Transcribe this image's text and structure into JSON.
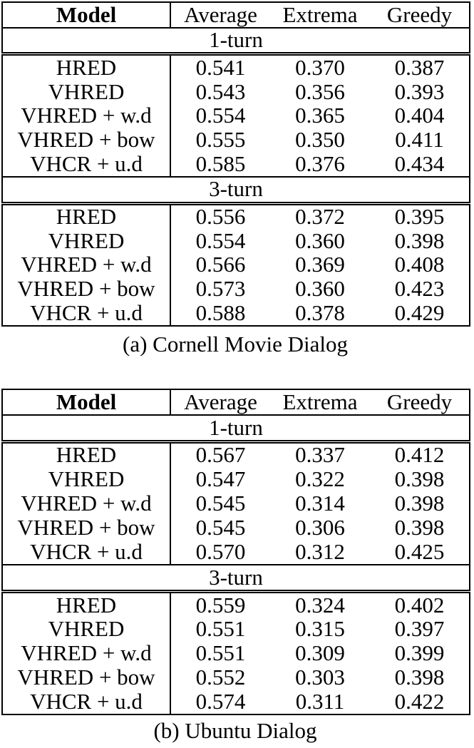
{
  "page": {
    "background_color": "#ffffff",
    "text_color": "#000000",
    "rule_color": "#000000"
  },
  "tables": [
    {
      "id": "cornell",
      "caption": "(a) Cornell Movie Dialog",
      "columns": [
        "Model",
        "Average",
        "Extrema",
        "Greedy"
      ],
      "sections": [
        {
          "label": "1-turn",
          "rows": [
            {
              "model": "HRED",
              "values": [
                "0.541",
                "0.370",
                "0.387"
              ],
              "bold": [
                false,
                false,
                false
              ]
            },
            {
              "model": "VHRED",
              "values": [
                "0.543",
                "0.356",
                "0.393"
              ],
              "bold": [
                false,
                false,
                false
              ]
            },
            {
              "model": "VHRED + w.d",
              "values": [
                "0.554",
                "0.365",
                "0.404"
              ],
              "bold": [
                false,
                false,
                false
              ]
            },
            {
              "model": "VHRED + bow",
              "values": [
                "0.555",
                "0.350",
                "0.411"
              ],
              "bold": [
                false,
                false,
                false
              ]
            },
            {
              "model": "VHCR + u.d",
              "values": [
                "0.585",
                "0.376",
                "0.434"
              ],
              "bold": [
                true,
                true,
                true
              ]
            }
          ]
        },
        {
          "label": "3-turn",
          "rows": [
            {
              "model": "HRED",
              "values": [
                "0.556",
                "0.372",
                "0.395"
              ],
              "bold": [
                false,
                false,
                false
              ]
            },
            {
              "model": "VHRED",
              "values": [
                "0.554",
                "0.360",
                "0.398"
              ],
              "bold": [
                false,
                false,
                false
              ]
            },
            {
              "model": "VHRED + w.d",
              "values": [
                "0.566",
                "0.369",
                "0.408"
              ],
              "bold": [
                false,
                false,
                false
              ]
            },
            {
              "model": "VHRED + bow",
              "values": [
                "0.573",
                "0.360",
                "0.423"
              ],
              "bold": [
                false,
                false,
                false
              ]
            },
            {
              "model": "VHCR + u.d",
              "values": [
                "0.588",
                "0.378",
                "0.429"
              ],
              "bold": [
                true,
                true,
                true
              ]
            }
          ]
        }
      ]
    },
    {
      "id": "ubuntu",
      "caption": "(b) Ubuntu Dialog",
      "columns": [
        "Model",
        "Average",
        "Extrema",
        "Greedy"
      ],
      "sections": [
        {
          "label": "1-turn",
          "rows": [
            {
              "model": "HRED",
              "values": [
                "0.567",
                "0.337",
                "0.412"
              ],
              "bold": [
                false,
                true,
                false
              ]
            },
            {
              "model": "VHRED",
              "values": [
                "0.547",
                "0.322",
                "0.398"
              ],
              "bold": [
                false,
                false,
                false
              ]
            },
            {
              "model": "VHRED + w.d",
              "values": [
                "0.545",
                "0.314",
                "0.398"
              ],
              "bold": [
                false,
                false,
                false
              ]
            },
            {
              "model": "VHRED + bow",
              "values": [
                "0.545",
                "0.306",
                "0.398"
              ],
              "bold": [
                false,
                false,
                false
              ]
            },
            {
              "model": "VHCR + u.d",
              "values": [
                "0.570",
                "0.312",
                "0.425"
              ],
              "bold": [
                true,
                false,
                true
              ]
            }
          ]
        },
        {
          "label": "3-turn",
          "rows": [
            {
              "model": "HRED",
              "values": [
                "0.559",
                "0.324",
                "0.402"
              ],
              "bold": [
                false,
                true,
                false
              ]
            },
            {
              "model": "VHRED",
              "values": [
                "0.551",
                "0.315",
                "0.397"
              ],
              "bold": [
                false,
                false,
                false
              ]
            },
            {
              "model": "VHRED + w.d",
              "values": [
                "0.551",
                "0.309",
                "0.399"
              ],
              "bold": [
                false,
                false,
                false
              ]
            },
            {
              "model": "VHRED + bow",
              "values": [
                "0.552",
                "0.303",
                "0.398"
              ],
              "bold": [
                false,
                false,
                false
              ]
            },
            {
              "model": "VHCR + u.d",
              "values": [
                "0.574",
                "0.311",
                "0.422"
              ],
              "bold": [
                true,
                false,
                true
              ]
            }
          ]
        }
      ]
    }
  ]
}
